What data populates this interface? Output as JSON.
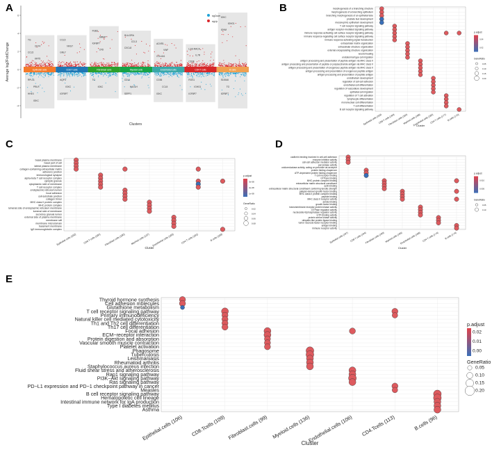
{
  "panels": {
    "A": "A",
    "B": "B",
    "C": "C",
    "D": "D",
    "E": "E"
  },
  "panelA": {
    "ylabel": "Average log2FoldChange",
    "xlabel": "Clusters",
    "legend": [
      {
        "name": "sigDown",
        "color": "#1fa3d8"
      },
      {
        "name": "sigUp",
        "color": "#d9262c"
      }
    ],
    "yticks": [
      "6",
      "4",
      "2",
      "0",
      "-2",
      "-4"
    ],
    "clusters": [
      {
        "name": "Epithelial cells",
        "color": "#f47a2a",
        "up": [
          "TG",
          "CD74",
          "CCL5",
          "KRT5"
        ],
        "down": [
          "RPL41",
          "PRLR",
          "HHEX",
          "IGKC"
        ]
      },
      {
        "name": "CD8 T cells",
        "color": "#1f77b4",
        "up": [
          "CCL5",
          "NKG7",
          "GNLY"
        ],
        "down": [
          "AQP3",
          "IGKC",
          "IGFBP7"
        ]
      },
      {
        "name": "Fibroblast cells",
        "color": "#2ca02c",
        "up": [
          "FGB3",
          "SMIM7",
          "IGFBP7",
          "CFD"
        ],
        "down": [
          "TG",
          "IGKC"
        ]
      },
      {
        "name": "Myeloid cells",
        "color": "#17a347",
        "up": [
          "HLA-DRA",
          "CCL3",
          "CXCL8"
        ],
        "down": [
          "CD14",
          "HAGLH",
          "SEPP1"
        ]
      },
      {
        "name": "Endothelial cells",
        "color": "#3aa8a8",
        "up": [
          "ACKR1",
          "VWF",
          "COL4A1"
        ],
        "down": [
          "CD36",
          "CCL5",
          "IGKC"
        ]
      },
      {
        "name": "CD4 T cells",
        "color": "#d62728",
        "up": [
          "LGS-RACA",
          "IL7R",
          "CD3E"
        ],
        "down": [
          "RGS1",
          "IGHG1",
          "IGFBP7"
        ]
      },
      {
        "name": "B cells",
        "color": "#f0a050",
        "up": [
          "IGKC",
          "IGHG1",
          "IGHM"
        ],
        "down": [
          "S100A6",
          "TG",
          "IGFBP7"
        ]
      }
    ]
  },
  "panelB": {
    "xlabel": "Cluster",
    "categories": [
      "Epithelial cells (183)",
      "CD8 T cells (184)",
      "Fibroblast cells (184)",
      "Myeloid cells (188)",
      "Endothelial cells (185)",
      "CD4 T cells (177)",
      "B cells (176)"
    ],
    "terms": [
      "morphogenesis of a branching structure",
      "morphogenesis of a branching epithelium",
      "branching morphogenesis of an epithelial tube",
      "prostate bud development",
      "mesonephric epithelium development",
      "T cell receptor signaling pathway",
      "antigen receptor-mediated signaling pathway",
      "immune response-activating cell surface receptor signaling pathway",
      "immune response-regulating cell surface receptor signaling pathway",
      "immune response-activating signal transduction",
      "extracellular matrix organization",
      "extracellular structure organization",
      "external encapsulating structure organization",
      "wound healing",
      "endodermal type cell migration",
      "antigen processing and presentation of peptide antigen via MHC class II",
      "antigen processing and presentation of peptide or polysaccharide antigen via MHC class II",
      "antigen processing and presentation of exogenous peptide antigen via MHC class II",
      "antigen processing and presentation of exogenous peptide antigen",
      "antigen processing and presentation of peptide antigen",
      "endothelium development",
      "regulation of cell-cell adhesion",
      "endothelial cell differentiation",
      "regulation of vasculature development",
      "epithelial cell migration",
      "regulation of T cell activation",
      "lymphocyte differentiation",
      "mononuclear cell differentiation",
      "T cell differentiation",
      "B cell receptor signaling pathway"
    ],
    "legend_title": "p.adjust",
    "legend_ticks": [
      "0.04",
      "0.02"
    ],
    "size_title": "GeneRatio",
    "size_ticks": [
      "0.05",
      "0.10",
      "0.15",
      "0.20"
    ]
  },
  "panelC": {
    "xlabel": "Cluster",
    "categories": [
      "Epithelial cells (182)",
      "CD8 T cells (184)",
      "Fibroblast cells (180)",
      "Myeloid cells (137)",
      "Endothelial cells (183)",
      "CD4 T cells (181)",
      "B cells (180)"
    ],
    "terms": [
      "basal plasma membrane",
      "basal part of cell",
      "lateral plasma membrane",
      "collagen-containing extracellular matrix",
      "adherens junction",
      "immunological synapse",
      "alpha-beta T cell receptor complex",
      "cytolytic granule",
      "cytoplasmic side of membrane",
      "T cell receptor complex",
      "endoplasmic reticulum lumen",
      "focal adhesion",
      "cell-substrate junction",
      "collagen trimer",
      "MHC class II protein complex",
      "MHC protein complex",
      "lumenal side of endoplasmic reticulum membrane",
      "lumenal side of membrane",
      "secretory granule lumen",
      "external side of plasma membrane",
      "membrane raft",
      "membrane microdomain",
      "basement membrane",
      "IgG immunoglobulin complex"
    ],
    "legend_title": "p.adjust",
    "legend_ticks": [
      "3e-08",
      "2e-08",
      "1e-08"
    ],
    "size_title": "GeneRatio",
    "size_ticks": [
      "0.02",
      "0.04",
      "0.06",
      "0.08"
    ]
  },
  "panelD": {
    "xlabel": "Cluster",
    "categories": [
      "Epithelial cells (187)",
      "CD8 T cells (184)",
      "Fibroblast cells (180)",
      "Myeloid cells (185)",
      "Endothelial cells (188)",
      "CD4 T cells (174)",
      "B cells (174)"
    ],
    "terms": [
      "cadherin binding involved in cell-cell adhesion",
      "enzyme inhibitor activity",
      "cell-cell adhesion mediator activity",
      "peroxidase activity",
      "oxidoreductase activity, acting on peroxide as acceptor",
      "protein folding chaperone",
      "ATP-dependent protein folding chaperone",
      "T cell receptor binding",
      "GTPase binding",
      "MHC protein complex binding",
      "extracellular matrix structural constituent",
      "actin binding",
      "extracellular matrix structural constituent conferring tensile strength",
      "platelet-derived growth factor binding",
      "MHC class II protein complex binding",
      "peptide binding",
      "MHC class II receptor activity",
      "amide binding",
      "growth factor binding",
      "transmembrane receptor protein kinase activity",
      "GTPase regulator activity",
      "nucleoside-triphosphatase regulator activity",
      "GTP-binding activity",
      "protein serine kinase activity",
      "ubiquitin-like protein ligase binding",
      "tumor necrosis factor receptor binding",
      "antigen binding",
      "immune receptor activity"
    ],
    "legend_title": "p.adjust",
    "legend_ticks": [
      "0.010",
      "0.005"
    ],
    "size_title": "GeneRatio",
    "size_ticks": [
      "0.05",
      "0.10"
    ]
  },
  "panelE": {
    "xlabel": "Cluster",
    "categories": [
      "Epithelial.cells (106)",
      "CD8.Tcells (109)",
      "Fibroblast.cells (99)",
      "Myeloid.cells (136)",
      "Endothelial.cells (106)",
      "CD4.Tcells (113)",
      "B.cells (96)"
    ],
    "terms": [
      "Thyroid hormone synthesis",
      "Cell adhesion molecules",
      "Glutathione metabolism",
      "T cell receptor signaling pathway",
      "Primary immunodeficiency",
      "Natural killer cell mediated cytotoxicity",
      "Th1 and Th2 cell differentiation",
      "Th17 cell differentiation",
      "Focal adhesion",
      "ECM−receptor interaction",
      "Protein digestion and absorption",
      "Vascular smooth muscle contraction",
      "Platelet activation",
      "Phagosome",
      "Tuberculosis",
      "Leishmaniasis",
      "Rheumatoid arthritis",
      "Staphylococcus aureus infection",
      "Fluid shear stress and atherosclerosis",
      "Rap1 signaling pathway",
      "PI3K−Akt signaling pathway",
      "Ras signaling pathway",
      "PD−L1 expression and PD−1 checkpoint pathway in cancer",
      "Measles",
      "B cell receptor signaling pathway",
      "Hematopoietic cell lineage",
      "Intestinal immune network for IgA production",
      "Type I diabetes mellitus",
      "Asthma"
    ],
    "legend_title": "p.adjust",
    "legend_ticks": [
      "0.02",
      "0.01",
      "0.00"
    ],
    "size_title": "GeneRatio",
    "size_ticks": [
      "0.05",
      "0.10",
      "0.15",
      "0.20"
    ]
  },
  "chart_data": [
    {
      "type": "scatter",
      "panel": "A",
      "description_values": "volcano-style differential expression per cluster",
      "ylim": [
        -5,
        7
      ]
    },
    {
      "type": "scatter",
      "panel": "B",
      "dots": [
        [
          0,
          0,
          0.04
        ],
        [
          0,
          1,
          0.04
        ],
        [
          0,
          2,
          0.03
        ],
        [
          0,
          3,
          0.005
        ],
        [
          0,
          4,
          0.005
        ],
        [
          1,
          5,
          0.04
        ],
        [
          1,
          6,
          0.04
        ],
        [
          1,
          7,
          0.04
        ],
        [
          1,
          8,
          0.04
        ],
        [
          1,
          9,
          0.04
        ],
        [
          2,
          10,
          0.04
        ],
        [
          2,
          11,
          0.04
        ],
        [
          2,
          12,
          0.04
        ],
        [
          2,
          13,
          0.04
        ],
        [
          2,
          14,
          0.04
        ],
        [
          3,
          15,
          0.04
        ],
        [
          3,
          16,
          0.04
        ],
        [
          3,
          17,
          0.04
        ],
        [
          3,
          18,
          0.04
        ],
        [
          3,
          19,
          0.04
        ],
        [
          4,
          20,
          0.04
        ],
        [
          4,
          21,
          0.04
        ],
        [
          4,
          22,
          0.04
        ],
        [
          4,
          23,
          0.04
        ],
        [
          4,
          24,
          0.04
        ],
        [
          5,
          25,
          0.04
        ],
        [
          5,
          26,
          0.04
        ],
        [
          5,
          27,
          0.04
        ],
        [
          5,
          28,
          0.04
        ],
        [
          5,
          7,
          0.04
        ],
        [
          6,
          7,
          0.04
        ],
        [
          6,
          29,
          0.04
        ]
      ]
    },
    {
      "type": "scatter",
      "panel": "C",
      "dots": [
        [
          0,
          0,
          3e-08
        ],
        [
          0,
          1,
          3e-08
        ],
        [
          0,
          2,
          3e-08
        ],
        [
          0,
          3,
          3e-08
        ],
        [
          1,
          5,
          3e-08
        ],
        [
          1,
          6,
          3e-08
        ],
        [
          1,
          7,
          3e-08
        ],
        [
          1,
          8,
          3e-08
        ],
        [
          1,
          9,
          3e-08
        ],
        [
          2,
          3,
          3e-08
        ],
        [
          2,
          10,
          3e-08
        ],
        [
          2,
          11,
          3e-08
        ],
        [
          2,
          12,
          3e-08
        ],
        [
          2,
          13,
          3e-08
        ],
        [
          3,
          14,
          3e-08
        ],
        [
          3,
          15,
          3e-08
        ],
        [
          3,
          16,
          3e-08
        ],
        [
          3,
          17,
          3e-08
        ],
        [
          4,
          19,
          3e-08
        ],
        [
          4,
          20,
          3e-08
        ],
        [
          4,
          21,
          3e-08
        ],
        [
          4,
          22,
          3e-08
        ],
        [
          5,
          3,
          3e-08
        ],
        [
          5,
          7,
          3e-08
        ],
        [
          5,
          8,
          1e-08
        ],
        [
          5,
          9,
          3e-08
        ],
        [
          6,
          7,
          3e-08
        ],
        [
          6,
          23,
          3e-08
        ]
      ]
    },
    {
      "type": "scatter",
      "panel": "D",
      "dots": [
        [
          0,
          0,
          0.01
        ],
        [
          0,
          1,
          0.01
        ],
        [
          0,
          2,
          0.01
        ],
        [
          1,
          5,
          0.01
        ],
        [
          1,
          6,
          0.01
        ],
        [
          1,
          7,
          0.002
        ],
        [
          2,
          9,
          0.01
        ],
        [
          2,
          10,
          0.01
        ],
        [
          2,
          11,
          0.01
        ],
        [
          2,
          12,
          0.01
        ],
        [
          3,
          13,
          0.01
        ],
        [
          3,
          14,
          0.01
        ],
        [
          3,
          15,
          0.01
        ],
        [
          3,
          16,
          0.01
        ],
        [
          4,
          19,
          0.01
        ],
        [
          4,
          20,
          0.01
        ],
        [
          4,
          21,
          0.01
        ],
        [
          4,
          22,
          0.01
        ],
        [
          5,
          23,
          0.01
        ],
        [
          5,
          24,
          0.01
        ],
        [
          5,
          25,
          0.01
        ],
        [
          6,
          9,
          0.01
        ],
        [
          6,
          13,
          0.01
        ],
        [
          6,
          16,
          0.01
        ],
        [
          6,
          26,
          0.01
        ],
        [
          6,
          27,
          0.01
        ]
      ]
    },
    {
      "type": "scatter",
      "panel": "E",
      "dots": [
        [
          0,
          0,
          0.02,
          0.12
        ],
        [
          0,
          1,
          0.02,
          0.12
        ],
        [
          0,
          2,
          0.0,
          0.05
        ],
        [
          1,
          3,
          0.02,
          0.15
        ],
        [
          1,
          4,
          0.02,
          0.12
        ],
        [
          1,
          5,
          0.02,
          0.12
        ],
        [
          1,
          6,
          0.02,
          0.12
        ],
        [
          1,
          7,
          0.02,
          0.12
        ],
        [
          2,
          8,
          0.02,
          0.15
        ],
        [
          2,
          9,
          0.02,
          0.15
        ],
        [
          2,
          10,
          0.02,
          0.12
        ],
        [
          2,
          11,
          0.02,
          0.12
        ],
        [
          2,
          12,
          0.02,
          0.12
        ],
        [
          3,
          13,
          0.02,
          0.18
        ],
        [
          3,
          14,
          0.02,
          0.18
        ],
        [
          3,
          15,
          0.02,
          0.15
        ],
        [
          3,
          16,
          0.02,
          0.15
        ],
        [
          3,
          17,
          0.02,
          0.15
        ],
        [
          4,
          8,
          0.02,
          0.12
        ],
        [
          4,
          18,
          0.02,
          0.15
        ],
        [
          4,
          19,
          0.02,
          0.15
        ],
        [
          4,
          20,
          0.02,
          0.18
        ],
        [
          4,
          21,
          0.02,
          0.15
        ],
        [
          5,
          3,
          0.02,
          0.12
        ],
        [
          5,
          4,
          0.02,
          0.1
        ],
        [
          5,
          22,
          0.02,
          0.12
        ],
        [
          5,
          23,
          0.02,
          0.1
        ],
        [
          6,
          24,
          0.02,
          0.18
        ],
        [
          6,
          25,
          0.02,
          0.18
        ],
        [
          6,
          26,
          0.02,
          0.15
        ],
        [
          6,
          27,
          0.02,
          0.15
        ],
        [
          6,
          28,
          0.02,
          0.15
        ]
      ]
    }
  ]
}
